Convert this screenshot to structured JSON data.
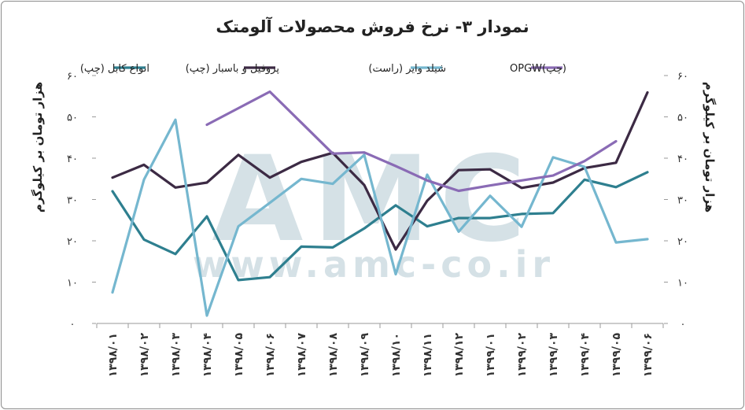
{
  "chart_data": {
    "type": "line",
    "title": "نمودار ۳- نرخ فروش محصولات آلومتک",
    "ylabel_left": "هزار تومان بر کیلوگرم",
    "ylabel_right": "هزار تومان بر کیلوگرم",
    "ylim": [
      0,
      60
    ],
    "y_ticks": [
      "۰",
      "۱۰",
      "۲۰",
      "۳۰",
      "۴۰",
      "۵۰",
      "۶۰"
    ],
    "grid": "none",
    "legend_placement": "top",
    "watermark": "AMC www.amc-co.ir",
    "categories": [
      "۱۳۹۸/۰۱",
      "۱۳۹۸/۰۲",
      "۱۳۹۸/۰۳",
      "۱۳۹۸/۰۴",
      "۱۳۹۸/۰۵",
      "۱۳۹۸/۰۶",
      "۱۳۹۸/۰۷",
      "۱۳۹۸/۰۸",
      "۱۳۹۸/۰۹",
      "۱۳۹۸/۱۰",
      "۱۳۹۸/۱۱",
      "۱۳۹۸/۱۲",
      "۱۳۹۹/۰۱",
      "۱۳۹۹/۰۲",
      "۱۳۹۹/۰۳",
      "۱۳۹۹/۰۴",
      "۱۳۹۹/۰۵",
      "۱۳۹۹/۰۶"
    ],
    "series": [
      {
        "name": "انواع کابل (چپ)",
        "color": "#2e7f8f",
        "values": [
          32,
          20.3,
          16.8,
          25.9,
          10.5,
          11.2,
          18.6,
          18.4,
          23,
          28.6,
          23.5,
          25.5,
          25.5,
          26.5,
          26.7,
          34.8,
          33,
          36.6
        ]
      },
      {
        "name": "پروفیل و باسبار (چپ)",
        "color": "#3c2a44",
        "values": [
          35.3,
          38.4,
          32.9,
          34.1,
          40.8,
          35.3,
          39.1,
          41.3,
          33.5,
          17.9,
          29.7,
          37.1,
          37.3,
          32.8,
          34.1,
          37.6,
          38.9,
          55.9
        ]
      },
      {
        "name": "شیلد وایر (راست)",
        "color": "#75b7cf",
        "values": [
          7.5,
          34.8,
          49.3,
          1.9,
          23.5,
          29.2,
          35,
          33.8,
          40.8,
          11.9,
          36,
          22.2,
          30.9,
          23.4,
          40.2,
          37.9,
          19.6,
          20.4
        ]
      },
      {
        "name": "OPGW(چپ)",
        "color": "#8a6bb5",
        "values": [
          null,
          null,
          null,
          48.1,
          52.1,
          56.1,
          48.6,
          41.1,
          41.4,
          38.1,
          34.6,
          32.1,
          33.4,
          34.6,
          35.8,
          39.3,
          44.1,
          null
        ]
      }
    ]
  }
}
